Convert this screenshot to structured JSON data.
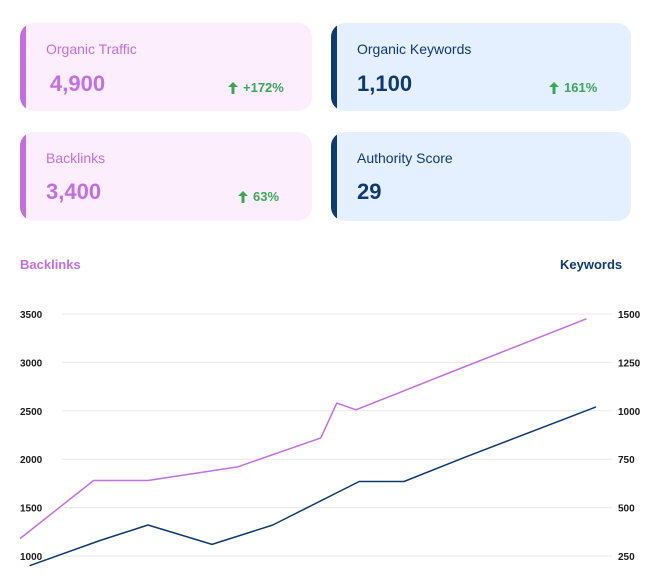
{
  "cards": [
    {
      "label": "Organic Traffic",
      "value": "4,900",
      "delta": "+172%"
    },
    {
      "label": "Organic Keywords",
      "value": "1,100",
      "delta": "161%"
    },
    {
      "label": "Backlinks",
      "value": "3,400",
      "delta": "63%"
    },
    {
      "label": "Authority Score",
      "value": "29",
      "delta": ""
    }
  ],
  "colors": {
    "pink": "#c36fe0",
    "navy": "#0e3a6e",
    "green": "#3aa757",
    "grid": "#e8e8e8"
  },
  "chart_data": {
    "type": "line",
    "title": "",
    "grid": true,
    "left_axis": {
      "label": "Backlinks",
      "ticks": [
        "3500",
        "3000",
        "2500",
        "2000",
        "1500",
        "1000"
      ],
      "ylim": [
        1000,
        3500
      ]
    },
    "right_axis": {
      "label": "Keywords",
      "ticks": [
        "1500",
        "1250",
        "1000",
        "750",
        "500",
        "250"
      ],
      "ylim": [
        250,
        1500
      ]
    },
    "series": [
      {
        "name": "Backlinks",
        "axis": "left",
        "points": [
          [
            0,
            1180
          ],
          [
            0.115,
            1780
          ],
          [
            0.2,
            1780
          ],
          [
            0.34,
            1920
          ],
          [
            0.47,
            2220
          ],
          [
            0.495,
            2580
          ],
          [
            0.525,
            2510
          ],
          [
            0.67,
            2890
          ],
          [
            0.885,
            3450
          ]
        ]
      },
      {
        "name": "Keywords",
        "axis": "right",
        "points": [
          [
            0.015,
            200
          ],
          [
            0.125,
            330
          ],
          [
            0.2,
            410
          ],
          [
            0.3,
            310
          ],
          [
            0.395,
            410
          ],
          [
            0.53,
            635
          ],
          [
            0.6,
            635
          ],
          [
            0.695,
            760
          ],
          [
            0.9,
            1020
          ]
        ]
      }
    ]
  }
}
